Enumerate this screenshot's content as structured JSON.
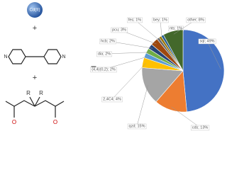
{
  "scheme": {
    "metal": "Cd(II)",
    "plus_top": "+",
    "plus_bottom": "+",
    "nitrogen_left": "N",
    "nitrogen_right": "N",
    "r_left": "R",
    "r_right": "R",
    "oxygen_left": "O",
    "oxygen_right": "O",
    "equals": "="
  },
  "chart_data": {
    "type": "pie",
    "values": [
      49,
      13,
      15,
      4,
      2,
      2,
      2,
      3,
      1,
      1,
      1,
      8
    ],
    "value_labels": [
      "sql; 49%",
      "cds; 13%",
      "qzd; 15%",
      "2,4C4; 4%",
      "(4,4)(0,2); 2%",
      "dia; 2%",
      "hcb; 2%",
      "pcu; 3%",
      "fes; 1%",
      "bey; 1%",
      "nts; 1%",
      "other; 8%"
    ],
    "colors": [
      "#4472c4",
      "#ed7d31",
      "#a5a5a5",
      "#ffc000",
      "#5b9bd5",
      "#70ad47",
      "#264478",
      "#9e480e",
      "#636363",
      "#997300",
      "#255e91",
      "#43682b"
    ]
  }
}
